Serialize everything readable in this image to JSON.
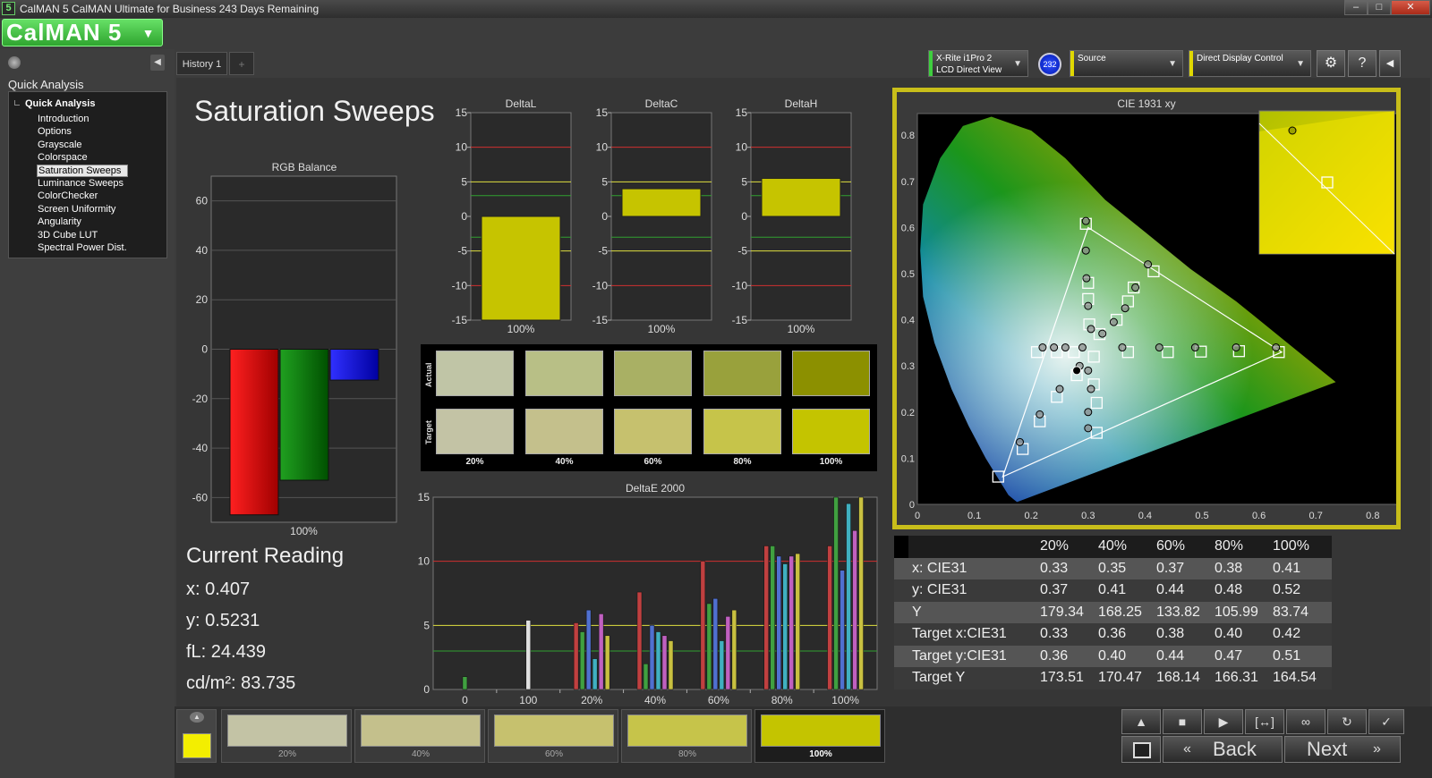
{
  "window": {
    "title": "CalMAN 5 CalMAN Ultimate for Business 243 Days Remaining"
  },
  "logo": {
    "text": "CalMAN 5"
  },
  "sidebar": {
    "section": "Quick Analysis",
    "group": "Quick Analysis",
    "items": [
      "Introduction",
      "Options",
      "Grayscale",
      "Colorspace",
      "Saturation Sweeps",
      "Luminance Sweeps",
      "ColorChecker",
      "Screen Uniformity",
      "Angularity",
      "3D Cube LUT",
      "Spectral Power Dist."
    ],
    "selected": "Saturation Sweeps"
  },
  "tabs": {
    "history": "History 1",
    "add": "+"
  },
  "devices": {
    "meter_line1": "X-Rite i1Pro 2",
    "meter_line2": "LCD Direct View",
    "meter_badge": "232",
    "source": "Source",
    "display": "Direct Display Control"
  },
  "page_title": "Saturation Sweeps",
  "rgb_balance": {
    "title": "RGB Balance",
    "categories": [
      "100%"
    ],
    "ticks": [
      60,
      40,
      20,
      0,
      -20,
      -40,
      -60
    ],
    "ylim": [
      -70,
      70
    ],
    "values": {
      "red": -67,
      "green": -53,
      "blue": -12.5
    }
  },
  "delta_charts": [
    {
      "title": "DeltaL",
      "value": -15,
      "category": "100%"
    },
    {
      "title": "DeltaC",
      "value": 4,
      "category": "100%"
    },
    {
      "title": "DeltaH",
      "value": 5.5,
      "category": "100%"
    }
  ],
  "delta_ticks": [
    15,
    10,
    5,
    0,
    -5,
    -10,
    -15
  ],
  "swatches": {
    "actual_label": "Actual",
    "target_label": "Target",
    "labels": [
      "20%",
      "40%",
      "60%",
      "80%",
      "100%"
    ],
    "actual": [
      "#c0c5a6",
      "#b8bf86",
      "#a9b064",
      "#99a13c",
      "#8c9000"
    ],
    "target": [
      "#c3c3a5",
      "#c4c08c",
      "#c6c16e",
      "#c6c44a",
      "#c4c400"
    ]
  },
  "current_reading": {
    "title": "Current Reading",
    "x": "x: 0.407",
    "y": "y: 0.5231",
    "fl": "fL: 24.439",
    "cdm2": "cd/m²: 83.735"
  },
  "chart_data": {
    "type": "bar",
    "title": "DeltaE 2000",
    "categories": [
      "0",
      "100",
      "20%",
      "40%",
      "60%",
      "80%",
      "100%"
    ],
    "ylim": [
      0,
      15
    ],
    "yticks": [
      0,
      5,
      10,
      15
    ],
    "reference_lines": {
      "red": 10,
      "yellow": 5,
      "green": 3
    },
    "series": [
      {
        "name": "red",
        "color": "#c04040",
        "values": [
          0,
          0,
          5.2,
          7.6,
          10,
          11.2,
          11.2
        ]
      },
      {
        "name": "green",
        "color": "#40a040",
        "values": [
          1,
          0,
          4.5,
          2,
          6.7,
          11.2,
          15
        ]
      },
      {
        "name": "blue",
        "color": "#5070d0",
        "values": [
          0,
          0,
          6.2,
          5,
          7.1,
          10.4,
          9.3
        ]
      },
      {
        "name": "cyan",
        "color": "#40b0c0",
        "values": [
          0,
          0,
          2.4,
          4.5,
          3.8,
          9.8,
          14.5
        ]
      },
      {
        "name": "magenta",
        "color": "#c060c0",
        "values": [
          0,
          0,
          5.9,
          4.2,
          5.7,
          10.4,
          12.4
        ]
      },
      {
        "name": "yellow",
        "color": "#c8c040",
        "values": [
          0,
          0,
          4.2,
          3.8,
          6.2,
          10.6,
          15
        ]
      },
      {
        "name": "white",
        "color": "#e0e0e0",
        "values": [
          0,
          5.4,
          0,
          0,
          0,
          0,
          0
        ]
      }
    ]
  },
  "cie": {
    "title": "CIE 1931 xy",
    "xticks": [
      "0",
      "0.1",
      "0.2",
      "0.3",
      "0.4",
      "0.5",
      "0.6",
      "0.7",
      "0.8"
    ],
    "yticks": [
      "0",
      "0.1",
      "0.2",
      "0.3",
      "0.4",
      "0.5",
      "0.6",
      "0.7",
      "0.8"
    ],
    "gamut": [
      [
        0.64,
        0.33
      ],
      [
        0.3,
        0.6
      ],
      [
        0.15,
        0.06
      ]
    ],
    "targets": [
      [
        0.296,
        0.608
      ],
      [
        0.3,
        0.48
      ],
      [
        0.3,
        0.445
      ],
      [
        0.302,
        0.39
      ],
      [
        0.32,
        0.369
      ],
      [
        0.35,
        0.4
      ],
      [
        0.37,
        0.44
      ],
      [
        0.38,
        0.47
      ],
      [
        0.415,
        0.505
      ],
      [
        0.37,
        0.33
      ],
      [
        0.44,
        0.33
      ],
      [
        0.498,
        0.331
      ],
      [
        0.565,
        0.332
      ],
      [
        0.635,
        0.33
      ],
      [
        0.142,
        0.06
      ],
      [
        0.185,
        0.12
      ],
      [
        0.215,
        0.18
      ],
      [
        0.245,
        0.233
      ],
      [
        0.28,
        0.28
      ],
      [
        0.21,
        0.33
      ],
      [
        0.245,
        0.33
      ],
      [
        0.275,
        0.33
      ],
      [
        0.31,
        0.32
      ],
      [
        0.31,
        0.26
      ],
      [
        0.315,
        0.22
      ],
      [
        0.315,
        0.155
      ]
    ],
    "actuals": [
      [
        0.296,
        0.614
      ],
      [
        0.296,
        0.55
      ],
      [
        0.297,
        0.49
      ],
      [
        0.3,
        0.43
      ],
      [
        0.305,
        0.38
      ],
      [
        0.325,
        0.37
      ],
      [
        0.345,
        0.395
      ],
      [
        0.365,
        0.425
      ],
      [
        0.383,
        0.47
      ],
      [
        0.405,
        0.52
      ],
      [
        0.36,
        0.34
      ],
      [
        0.425,
        0.34
      ],
      [
        0.488,
        0.34
      ],
      [
        0.56,
        0.34
      ],
      [
        0.63,
        0.34
      ],
      [
        0.18,
        0.135
      ],
      [
        0.215,
        0.195
      ],
      [
        0.25,
        0.25
      ],
      [
        0.285,
        0.3
      ],
      [
        0.22,
        0.34
      ],
      [
        0.24,
        0.34
      ],
      [
        0.26,
        0.34
      ],
      [
        0.29,
        0.34
      ],
      [
        0.3,
        0.29
      ],
      [
        0.305,
        0.25
      ],
      [
        0.3,
        0.2
      ],
      [
        0.3,
        0.165
      ]
    ],
    "current": [
      0.28,
      0.29
    ]
  },
  "data_table": {
    "columns": [
      "20%",
      "40%",
      "60%",
      "80%",
      "100%"
    ],
    "rows": [
      {
        "label": "x: CIE31",
        "values": [
          "0.33",
          "0.35",
          "0.37",
          "0.38",
          "0.41"
        ]
      },
      {
        "label": "y: CIE31",
        "values": [
          "0.37",
          "0.41",
          "0.44",
          "0.48",
          "0.52"
        ]
      },
      {
        "label": "Y",
        "values": [
          "179.34",
          "168.25",
          "133.82",
          "105.99",
          "83.74"
        ]
      },
      {
        "label": "Target x:CIE31",
        "values": [
          "0.33",
          "0.36",
          "0.38",
          "0.40",
          "0.42"
        ]
      },
      {
        "label": "Target y:CIE31",
        "values": [
          "0.36",
          "0.40",
          "0.44",
          "0.47",
          "0.51"
        ]
      },
      {
        "label": "Target Y",
        "values": [
          "173.51",
          "170.47",
          "168.14",
          "166.31",
          "164.54"
        ]
      }
    ]
  },
  "bottom_swatches": {
    "labels": [
      "20%",
      "40%",
      "60%",
      "80%",
      "100%"
    ],
    "colors": [
      "#c3c3a5",
      "#c4c08c",
      "#c6c16e",
      "#c6c44a",
      "#c4c400"
    ],
    "active": "100%"
  },
  "nav": {
    "back": "Back",
    "next": "Next"
  },
  "colors": {
    "accent": "#c8be1a",
    "brand": "#3fbf3f"
  }
}
